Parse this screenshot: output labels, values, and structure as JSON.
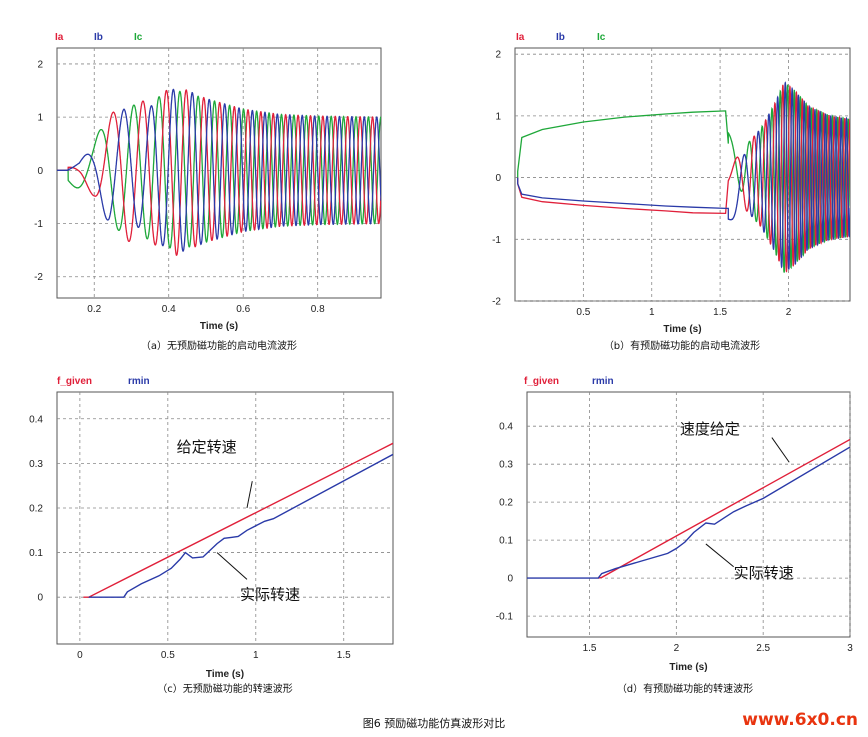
{
  "figure_title": "图6 预励磁功能仿真波形对比",
  "watermark": "www.6x0.cn",
  "chart_data": [
    {
      "id": "a",
      "type": "line",
      "caption": "（a）无预励磁功能的启动电流波形",
      "xlabel": "Time (s)",
      "xlim": [
        0.1,
        0.97
      ],
      "ylim": [
        -2.4,
        2.3
      ],
      "xticks": [
        0.2,
        0.4,
        0.6,
        0.8
      ],
      "xtick_labels": [
        "0.2",
        "0.4",
        "0.6",
        "0.8"
      ],
      "yticks": [
        -2,
        -1,
        0,
        1,
        2
      ],
      "ytick_labels": [
        "-2",
        "-1",
        "0",
        "1",
        "2"
      ],
      "grid": true,
      "legend": [
        "Ia",
        "Ib",
        "Ic"
      ],
      "colors": [
        "#e0203a",
        "#2a3aa8",
        "#1fa83a"
      ],
      "series": [
        {
          "name": "Ia",
          "x": [
            0.1,
            0.16,
            0.2,
            0.24,
            0.28,
            0.33,
            0.38,
            0.42,
            0.45,
            0.5,
            0.55,
            0.6,
            0.7,
            0.8,
            0.97
          ],
          "amp": [
            0.0,
            0.15,
            0.5,
            1.0,
            1.35,
            1.3,
            1.45,
            1.6,
            1.5,
            1.35,
            1.25,
            1.15,
            1.05,
            1.02,
            1.0
          ]
        },
        {
          "name": "Ib",
          "x": [
            0.1,
            0.16,
            0.2,
            0.24,
            0.28,
            0.33,
            0.38,
            0.42,
            0.45,
            0.5,
            0.55,
            0.6,
            0.7,
            0.8,
            0.97
          ],
          "amp": [
            0.0,
            0.15,
            0.5,
            1.0,
            1.15,
            1.05,
            1.4,
            1.55,
            1.5,
            1.35,
            1.25,
            1.15,
            1.05,
            1.02,
            1.0
          ]
        },
        {
          "name": "Ic",
          "x": [
            0.1,
            0.16,
            0.2,
            0.24,
            0.28,
            0.33,
            0.38,
            0.42,
            0.45,
            0.5,
            0.55,
            0.6,
            0.7,
            0.8,
            0.97
          ],
          "amp": [
            0.0,
            0.4,
            0.6,
            1.0,
            1.2,
            1.25,
            1.4,
            1.5,
            1.45,
            1.35,
            1.25,
            1.15,
            1.05,
            1.02,
            1.0
          ]
        }
      ]
    },
    {
      "id": "b",
      "type": "line",
      "caption": "（b）有预励磁功能的启动电流波形",
      "xlabel": "Time (s)",
      "xlim": [
        0.0,
        2.45
      ],
      "ylim": [
        -2.0,
        2.1
      ],
      "xticks": [
        0.5,
        1,
        1.5,
        2
      ],
      "xtick_labels": [
        "0.5",
        "1",
        "1.5",
        "2"
      ],
      "yticks": [
        -2,
        -1,
        0,
        1,
        2
      ],
      "ytick_labels": [
        "-2",
        "-1",
        "0",
        "1",
        "2"
      ],
      "grid": true,
      "legend": [
        "Ia",
        "Ib",
        "Ic"
      ],
      "colors": [
        "#e0203a",
        "#2a3aa8",
        "#1fa83a"
      ],
      "series": [
        {
          "name": "Ic",
          "x": [
            0.02,
            0.05,
            0.2,
            0.5,
            0.8,
            1.1,
            1.3,
            1.54
          ],
          "y": [
            0.1,
            0.65,
            0.78,
            0.9,
            0.98,
            1.03,
            1.06,
            1.08
          ]
        },
        {
          "name": "Ia",
          "x": [
            0.02,
            0.05,
            0.2,
            0.5,
            0.8,
            1.1,
            1.3,
            1.54
          ],
          "y": [
            -0.1,
            -0.32,
            -0.39,
            -0.45,
            -0.5,
            -0.54,
            -0.57,
            -0.58
          ]
        },
        {
          "name": "Ib",
          "x": [
            0.02,
            0.05,
            0.2,
            0.5,
            0.8,
            1.1,
            1.3,
            1.54
          ],
          "y": [
            -0.1,
            -0.27,
            -0.33,
            -0.38,
            -0.42,
            -0.46,
            -0.48,
            -0.5
          ]
        }
      ],
      "oscillation": {
        "x": [
          1.56,
          1.7,
          1.8,
          1.9,
          1.97,
          2.05,
          2.15,
          2.3,
          2.45
        ],
        "amp": [
          0.2,
          0.55,
          0.8,
          1.2,
          1.55,
          1.4,
          1.15,
          1.0,
          0.95
        ]
      }
    },
    {
      "id": "c",
      "type": "line",
      "caption": "（c）无预励磁功能的转速波形",
      "xlabel": "Time (s)",
      "xlim": [
        -0.13,
        1.78
      ],
      "ylim": [
        -0.105,
        0.46
      ],
      "xticks": [
        0,
        0.5,
        1,
        1.5
      ],
      "xtick_labels": [
        "0",
        "0.5",
        "1",
        "1.5"
      ],
      "yticks": [
        0,
        0.1,
        0.2,
        0.3,
        0.4
      ],
      "ytick_labels": [
        "0",
        "0.1",
        "0.2",
        "0.3",
        "0.4"
      ],
      "grid": true,
      "legend": [
        "f_given",
        "rmin"
      ],
      "colors": [
        "#e0203a",
        "#2a3aa8"
      ],
      "series": [
        {
          "name": "f_given",
          "x": [
            0.02,
            0.05,
            1.78
          ],
          "y": [
            0.0,
            0.0,
            0.345
          ]
        },
        {
          "name": "rmin",
          "x": [
            0.05,
            0.25,
            0.27,
            0.35,
            0.45,
            0.52,
            0.57,
            0.6,
            0.64,
            0.7,
            0.78,
            0.82,
            0.86,
            0.9,
            0.95,
            1.0,
            1.05,
            1.1,
            1.78
          ],
          "y": [
            0.0,
            0.0,
            0.012,
            0.03,
            0.048,
            0.065,
            0.085,
            0.1,
            0.088,
            0.09,
            0.12,
            0.132,
            0.134,
            0.136,
            0.15,
            0.16,
            0.17,
            0.176,
            0.32
          ]
        }
      ],
      "annotations": [
        {
          "text": "给定转速",
          "x": 0.55,
          "y": 0.325
        },
        {
          "text": "实际转速",
          "x": 0.91,
          "y": -0.005
        }
      ]
    },
    {
      "id": "d",
      "type": "line",
      "caption": "（d）有预励磁功能的转速波形",
      "xlabel": "Time (s)",
      "xlim": [
        1.14,
        3.0
      ],
      "ylim": [
        -0.155,
        0.49
      ],
      "xticks": [
        1.5,
        2,
        2.5,
        3
      ],
      "xtick_labels": [
        "1.5",
        "2",
        "2.5",
        "3"
      ],
      "yticks": [
        -0.1,
        0,
        0.1,
        0.2,
        0.3,
        0.4
      ],
      "ytick_labels": [
        "-0.1",
        "0",
        "0.1",
        "0.2",
        "0.3",
        "0.4"
      ],
      "grid": true,
      "legend": [
        "f_given",
        "rmin"
      ],
      "colors": [
        "#e0203a",
        "#2a3aa8"
      ],
      "series": [
        {
          "name": "f_given",
          "x": [
            1.55,
            1.57,
            3.0
          ],
          "y": [
            0.0,
            0.002,
            0.365
          ]
        },
        {
          "name": "rmin",
          "x": [
            1.14,
            1.55,
            1.57,
            1.65,
            1.8,
            1.95,
            2.0,
            2.05,
            2.1,
            2.17,
            2.22,
            2.28,
            2.33,
            2.4,
            2.5,
            3.0
          ],
          "y": [
            0.0,
            0.0,
            0.012,
            0.025,
            0.045,
            0.065,
            0.078,
            0.095,
            0.12,
            0.145,
            0.142,
            0.16,
            0.175,
            0.19,
            0.21,
            0.345
          ]
        }
      ],
      "annotations": [
        {
          "text": "速度给定",
          "x": 2.02,
          "y": 0.38
        },
        {
          "text": "实际转速",
          "x": 2.33,
          "y": 0.0
        }
      ]
    }
  ]
}
